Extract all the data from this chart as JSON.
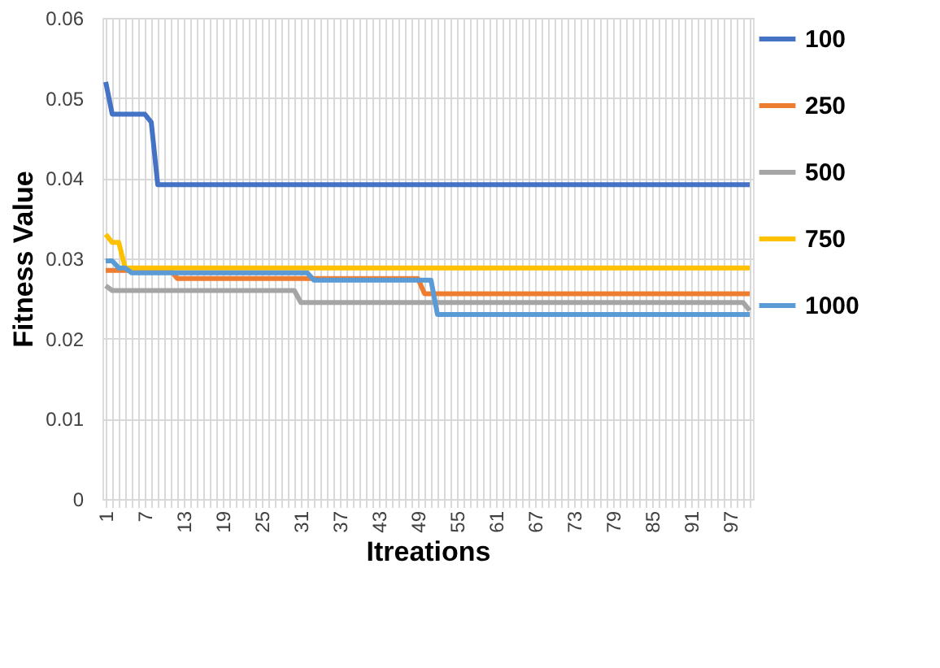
{
  "chart_data": {
    "type": "line",
    "xlabel": "Itreations",
    "ylabel": "Fitness Value",
    "xlim": [
      0.5,
      100.5
    ],
    "xticks": [
      1,
      {
        "value": 2,
        "label": null
      },
      {
        "value": 3,
        "label": null
      },
      {
        "value": 4,
        "label": null
      },
      {
        "value": 5,
        "label": null
      },
      {
        "value": 6,
        "label": null
      },
      7,
      {
        "value": 8,
        "label": null
      },
      {
        "value": 9,
        "label": null
      },
      {
        "value": 10,
        "label": null
      },
      {
        "value": 11,
        "label": null
      },
      {
        "value": 12,
        "label": null
      },
      13,
      {
        "value": 14,
        "label": null
      },
      {
        "value": 15,
        "label": null
      },
      {
        "value": 16,
        "label": null
      },
      {
        "value": 17,
        "label": null
      },
      {
        "value": 18,
        "label": null
      },
      19,
      {
        "value": 20,
        "label": null
      },
      {
        "value": 21,
        "label": null
      },
      {
        "value": 22,
        "label": null
      },
      {
        "value": 23,
        "label": null
      },
      {
        "value": 24,
        "label": null
      },
      25,
      {
        "value": 26,
        "label": null
      },
      {
        "value": 27,
        "label": null
      },
      {
        "value": 28,
        "label": null
      },
      {
        "value": 29,
        "label": null
      },
      {
        "value": 30,
        "label": null
      },
      31,
      {
        "value": 32,
        "label": null
      },
      {
        "value": 33,
        "label": null
      },
      {
        "value": 34,
        "label": null
      },
      {
        "value": 35,
        "label": null
      },
      {
        "value": 36,
        "label": null
      },
      37,
      {
        "value": 38,
        "label": null
      },
      {
        "value": 39,
        "label": null
      },
      {
        "value": 40,
        "label": null
      },
      {
        "value": 41,
        "label": null
      },
      {
        "value": 42,
        "label": null
      },
      43,
      {
        "value": 44,
        "label": null
      },
      {
        "value": 45,
        "label": null
      },
      {
        "value": 46,
        "label": null
      },
      {
        "value": 47,
        "label": null
      },
      {
        "value": 48,
        "label": null
      },
      49,
      {
        "value": 50,
        "label": null
      },
      {
        "value": 51,
        "label": null
      },
      {
        "value": 52,
        "label": null
      },
      {
        "value": 53,
        "label": null
      },
      {
        "value": 54,
        "label": null
      },
      55,
      {
        "value": 56,
        "label": null
      },
      {
        "value": 57,
        "label": null
      },
      {
        "value": 58,
        "label": null
      },
      {
        "value": 59,
        "label": null
      },
      {
        "value": 60,
        "label": null
      },
      61,
      {
        "value": 62,
        "label": null
      },
      {
        "value": 63,
        "label": null
      },
      {
        "value": 64,
        "label": null
      },
      {
        "value": 65,
        "label": null
      },
      {
        "value": 66,
        "label": null
      },
      67,
      {
        "value": 68,
        "label": null
      },
      {
        "value": 69,
        "label": null
      },
      {
        "value": 70,
        "label": null
      },
      {
        "value": 71,
        "label": null
      },
      {
        "value": 72,
        "label": null
      },
      73,
      {
        "value": 74,
        "label": null
      },
      {
        "value": 75,
        "label": null
      },
      {
        "value": 76,
        "label": null
      },
      {
        "value": 77,
        "label": null
      },
      {
        "value": 78,
        "label": null
      },
      79,
      {
        "value": 80,
        "label": null
      },
      {
        "value": 81,
        "label": null
      },
      {
        "value": 82,
        "label": null
      },
      {
        "value": 83,
        "label": null
      },
      {
        "value": 84,
        "label": null
      },
      85,
      {
        "value": 86,
        "label": null
      },
      {
        "value": 87,
        "label": null
      },
      {
        "value": 88,
        "label": null
      },
      {
        "value": 89,
        "label": null
      },
      {
        "value": 90,
        "label": null
      },
      91,
      {
        "value": 92,
        "label": null
      },
      {
        "value": 93,
        "label": null
      },
      {
        "value": 94,
        "label": null
      },
      {
        "value": 95,
        "label": null
      },
      {
        "value": 96,
        "label": null
      },
      97,
      {
        "value": 98,
        "label": null
      },
      {
        "value": 99,
        "label": null
      },
      {
        "value": 100,
        "label": null
      }
    ],
    "ylim": [
      0,
      0.06
    ],
    "yticks": [
      0,
      0.01,
      0.02,
      0.03,
      0.04,
      0.05,
      0.06
    ],
    "grid": true,
    "legend": "right",
    "marker": "none",
    "line_style": "solid",
    "series": [
      {
        "name": "100",
        "color": "#4472c4",
        "x": [
          1,
          2,
          7,
          8,
          9,
          100
        ],
        "values": [
          0.052,
          0.048,
          0.048,
          0.047,
          0.0392,
          0.0392
        ]
      },
      {
        "name": "250",
        "color": "#ed7d31",
        "x": [
          1,
          11,
          12,
          49,
          50,
          100
        ],
        "values": [
          0.0285,
          0.0285,
          0.0275,
          0.0275,
          0.0256,
          0.0256
        ]
      },
      {
        "name": "500",
        "color": "#a5a5a5",
        "x": [
          1,
          2,
          30,
          31,
          99,
          100
        ],
        "values": [
          0.0266,
          0.026,
          0.026,
          0.0245,
          0.0245,
          0.0235
        ]
      },
      {
        "name": "750",
        "color": "#ffc000",
        "x": [
          1,
          2,
          3,
          4,
          100
        ],
        "values": [
          0.033,
          0.032,
          0.032,
          0.0288,
          0.0288
        ]
      },
      {
        "name": "1000",
        "color": "#5b9bd5",
        "x": [
          1,
          2,
          3,
          4,
          5,
          32,
          33,
          51,
          52,
          100
        ],
        "values": [
          0.0297,
          0.0297,
          0.0288,
          0.0288,
          0.0282,
          0.0282,
          0.0273,
          0.0273,
          0.023,
          0.023
        ]
      }
    ]
  }
}
